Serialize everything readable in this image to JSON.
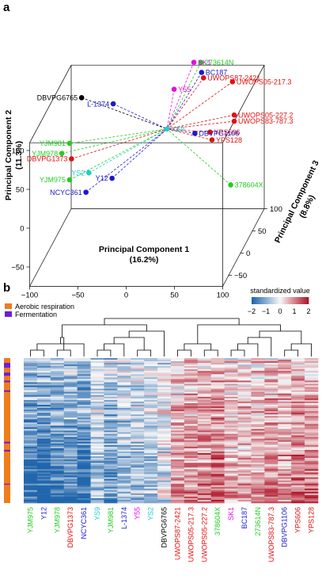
{
  "colors": {
    "green": "#22cc22",
    "blue": "#1a1acc",
    "red": "#e01010",
    "magenta": "#dd11dd",
    "cyan": "#22cccc",
    "black": "#000000",
    "aerobic": "#f07c1a",
    "fermentation": "#6a1ee0"
  },
  "chart_data": [
    {
      "type": "scatter",
      "panel": "a",
      "projection": "3d",
      "xlabel": "Principal Component 1",
      "xlabel_pct": "(16.2%)",
      "ylabel": "Principal Component 2",
      "ylabel_pct": "(11.3%)",
      "zlabel": "Principal Component 3",
      "zlabel_pct": "(8.8%)",
      "xticks": [
        "−100",
        "−50",
        "0",
        "50",
        "100"
      ],
      "yticks": [
        "−50",
        "0",
        "50",
        "100"
      ],
      "zticks": [
        "−50",
        "0",
        "50",
        "100"
      ],
      "xlim": [
        -100,
        100
      ],
      "ylim": [
        -75,
        110
      ],
      "zlim": [
        -75,
        100
      ],
      "centroid_label": "YS9",
      "points": [
        {
          "label": "DBVPG6765",
          "color": "black",
          "x": -72,
          "y": 108,
          "z": 30
        },
        {
          "label": "L-1374",
          "color": "blue",
          "x": -38,
          "y": 103,
          "z": 25
        },
        {
          "label": "Y55",
          "color": "magenta",
          "x": 14,
          "y": 96,
          "z": 70
        },
        {
          "label": "SK1",
          "color": "magenta",
          "x": 32,
          "y": 125,
          "z": 80
        },
        {
          "label": "273614N",
          "color": "green",
          "x": 38,
          "y": 122,
          "z": 85
        },
        {
          "label": "BC187",
          "color": "blue",
          "x": 40,
          "y": 112,
          "z": 80
        },
        {
          "label": "UWOPS87-2421",
          "color": "red",
          "x": 42,
          "y": 105,
          "z": 80
        },
        {
          "label": "UWOPS05-217.3",
          "color": "red",
          "x": 72,
          "y": 100,
          "z": 80
        },
        {
          "label": "UWOPS05-227.2",
          "color": "red",
          "x": 75,
          "y": 60,
          "z": 75
        },
        {
          "label": "UWOPS83-787.3",
          "color": "red",
          "x": 75,
          "y": 52,
          "z": 75
        },
        {
          "label": "YPS606",
          "color": "red",
          "x": 50,
          "y": 38,
          "z": 75
        },
        {
          "label": "YPS128",
          "color": "red",
          "x": 52,
          "y": 28,
          "z": 75
        },
        {
          "label": "DBVPG1106",
          "color": "blue",
          "x": 38,
          "y": 45,
          "z": 60
        },
        {
          "label": "378604X",
          "color": "green",
          "x": 80,
          "y": -10,
          "z": 40
        },
        {
          "label": "YJM981",
          "color": "green",
          "x": -82,
          "y": 55,
          "z": 20
        },
        {
          "label": "YJM978",
          "color": "green",
          "x": -90,
          "y": 42,
          "z": 20
        },
        {
          "label": "DBVPG1373",
          "color": "red",
          "x": -80,
          "y": 35,
          "z": 20
        },
        {
          "label": "YS2",
          "color": "cyan",
          "x": -62,
          "y": 17,
          "z": 20
        },
        {
          "label": "YJM975",
          "color": "green",
          "x": -82,
          "y": 8,
          "z": 20
        },
        {
          "label": "Y12",
          "color": "blue",
          "x": -38,
          "y": 10,
          "z": 20
        },
        {
          "label": "NCYC361",
          "color": "blue",
          "x": -65,
          "y": -8,
          "z": 20
        }
      ]
    },
    {
      "type": "heatmap",
      "panel": "b",
      "colorbar_title": "standardized value",
      "colorbar_ticks": [
        "−2",
        "−1",
        "0",
        "1",
        "2"
      ],
      "legend": [
        {
          "label": "Aerobic respiration",
          "color": "aerobic"
        },
        {
          "label": "Fermentation",
          "color": "fermentation"
        }
      ],
      "columns": [
        {
          "label": "YJM975",
          "color": "green",
          "profile": -1.1
        },
        {
          "label": "Y12",
          "color": "blue",
          "profile": -1.2
        },
        {
          "label": "YJM978",
          "color": "green",
          "profile": -1.0
        },
        {
          "label": "DBVPG1373",
          "color": "red",
          "profile": -0.9
        },
        {
          "label": "NCYC361",
          "color": "blue",
          "profile": -1.1
        },
        {
          "label": "YS9",
          "color": "cyan",
          "profile": -0.5
        },
        {
          "label": "YJM981",
          "color": "green",
          "profile": -0.7
        },
        {
          "label": "L-1374",
          "color": "blue",
          "profile": -0.5
        },
        {
          "label": "Y55",
          "color": "magenta",
          "profile": -0.4
        },
        {
          "label": "YS2",
          "color": "cyan",
          "profile": -0.4
        },
        {
          "label": "DBVPG6765",
          "color": "black",
          "profile": -0.2
        },
        {
          "label": "UWOPS87-2421",
          "color": "red",
          "profile": 0.5
        },
        {
          "label": "UWOPS05-217.3",
          "color": "red",
          "profile": 0.6
        },
        {
          "label": "UWOPS05-227.2",
          "color": "red",
          "profile": 0.7
        },
        {
          "label": "378604X",
          "color": "green",
          "profile": 0.8
        },
        {
          "label": "SK1",
          "color": "magenta",
          "profile": 0.4
        },
        {
          "label": "BC187",
          "color": "blue",
          "profile": 0.4
        },
        {
          "label": "273614N",
          "color": "green",
          "profile": 0.5
        },
        {
          "label": "UWOPS83-787.3",
          "color": "red",
          "profile": 0.6
        },
        {
          "label": "DBVPG1106",
          "color": "blue",
          "profile": 0.5
        },
        {
          "label": "YPS606",
          "color": "red",
          "profile": 0.7
        },
        {
          "label": "YPS128",
          "color": "red",
          "profile": 0.7
        }
      ],
      "dendrogram_merges": [
        [
          0,
          1
        ],
        [
          2,
          3
        ],
        [
          22,
          4
        ],
        [
          23,
          24
        ],
        [
          5,
          6
        ],
        [
          26,
          7
        ],
        [
          8,
          9
        ],
        [
          27,
          28
        ],
        [
          29,
          10
        ],
        [
          25,
          30
        ],
        [
          11,
          12
        ],
        [
          13,
          14
        ],
        [
          32,
          33
        ],
        [
          15,
          16
        ],
        [
          35,
          17
        ],
        [
          36,
          18
        ],
        [
          19,
          20
        ],
        [
          38,
          21
        ],
        [
          37,
          39
        ],
        [
          34,
          40
        ],
        [
          31,
          41
        ]
      ]
    }
  ]
}
